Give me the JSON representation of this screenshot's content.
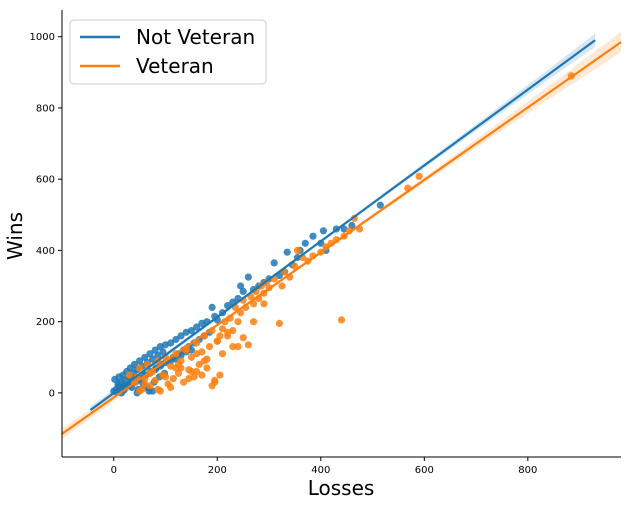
{
  "chart_data": {
    "type": "scatter",
    "title": "",
    "xlabel": "Losses",
    "ylabel": "Wins",
    "xlim": [
      -100,
      980
    ],
    "ylim": [
      -180,
      1075
    ],
    "xticks": [
      0,
      200,
      400,
      600,
      800
    ],
    "yticks": [
      0,
      200,
      400,
      600,
      800,
      1000
    ],
    "grid": false,
    "legend_position": "top-left",
    "series": [
      {
        "name": "Not Veteran",
        "color": "#1f77b4",
        "points": [
          [
            0,
            5
          ],
          [
            2,
            38
          ],
          [
            5,
            10
          ],
          [
            8,
            25
          ],
          [
            10,
            45
          ],
          [
            12,
            15
          ],
          [
            15,
            30
          ],
          [
            18,
            50
          ],
          [
            20,
            8
          ],
          [
            22,
            35
          ],
          [
            25,
            60
          ],
          [
            28,
            20
          ],
          [
            30,
            45
          ],
          [
            32,
            70
          ],
          [
            35,
            15
          ],
          [
            38,
            55
          ],
          [
            40,
            80
          ],
          [
            42,
            30
          ],
          [
            45,
            65
          ],
          [
            48,
            10
          ],
          [
            50,
            90
          ],
          [
            52,
            40
          ],
          [
            55,
            75
          ],
          [
            58,
            20
          ],
          [
            60,
            100
          ],
          [
            62,
            50
          ],
          [
            65,
            85
          ],
          [
            68,
            5
          ],
          [
            70,
            110
          ],
          [
            72,
            60
          ],
          [
            75,
            95
          ],
          [
            78,
            30
          ],
          [
            80,
            120
          ],
          [
            82,
            70
          ],
          [
            85,
            105
          ],
          [
            88,
            45
          ],
          [
            90,
            130
          ],
          [
            92,
            80
          ],
          [
            95,
            115
          ],
          [
            98,
            55
          ],
          [
            100,
            135
          ],
          [
            105,
            90
          ],
          [
            110,
            140
          ],
          [
            115,
            100
          ],
          [
            120,
            150
          ],
          [
            125,
            110
          ],
          [
            130,
            160
          ],
          [
            135,
            120
          ],
          [
            140,
            170
          ],
          [
            145,
            130
          ],
          [
            150,
            175
          ],
          [
            155,
            140
          ],
          [
            160,
            185
          ],
          [
            165,
            150
          ],
          [
            170,
            195
          ],
          [
            175,
            160
          ],
          [
            180,
            200
          ],
          [
            185,
            170
          ],
          [
            190,
            240
          ],
          [
            195,
            215
          ],
          [
            200,
            205
          ],
          [
            210,
            225
          ],
          [
            220,
            245
          ],
          [
            230,
            255
          ],
          [
            240,
            265
          ],
          [
            245,
            300
          ],
          [
            250,
            285
          ],
          [
            260,
            325
          ],
          [
            270,
            290
          ],
          [
            280,
            300
          ],
          [
            290,
            310
          ],
          [
            300,
            320
          ],
          [
            310,
            365
          ],
          [
            320,
            330
          ],
          [
            330,
            340
          ],
          [
            335,
            395
          ],
          [
            345,
            360
          ],
          [
            355,
            380
          ],
          [
            360,
            400
          ],
          [
            370,
            420
          ],
          [
            385,
            440
          ],
          [
            400,
            420
          ],
          [
            405,
            455
          ],
          [
            410,
            400
          ],
          [
            430,
            460
          ],
          [
            445,
            460
          ],
          [
            460,
            470
          ],
          [
            515,
            527
          ],
          [
            10,
            20
          ],
          [
            20,
            18
          ],
          [
            30,
            25
          ],
          [
            40,
            35
          ],
          [
            50,
            40
          ],
          [
            60,
            50
          ],
          [
            70,
            55
          ],
          [
            80,
            65
          ],
          [
            90,
            75
          ],
          [
            100,
            85
          ],
          [
            110,
            90
          ],
          [
            120,
            95
          ],
          [
            130,
            105
          ],
          [
            140,
            115
          ],
          [
            150,
            120
          ],
          [
            45,
            0
          ],
          [
            65,
            15
          ],
          [
            75,
            5
          ],
          [
            55,
            30
          ],
          [
            35,
            40
          ],
          [
            25,
            20
          ],
          [
            15,
            0
          ],
          [
            5,
            2
          ]
        ]
      },
      {
        "name": "Veteran",
        "color": "#ff7f0e",
        "points": [
          [
            30,
            50
          ],
          [
            40,
            30
          ],
          [
            50,
            70
          ],
          [
            55,
            10
          ],
          [
            60,
            40
          ],
          [
            65,
            80
          ],
          [
            70,
            20
          ],
          [
            75,
            60
          ],
          [
            80,
            35
          ],
          [
            85,
            90
          ],
          [
            90,
            5
          ],
          [
            95,
            50
          ],
          [
            100,
            100
          ],
          [
            105,
            25
          ],
          [
            110,
            75
          ],
          [
            115,
            40
          ],
          [
            120,
            110
          ],
          [
            125,
            55
          ],
          [
            130,
            90
          ],
          [
            135,
            30
          ],
          [
            140,
            125
          ],
          [
            145,
            65
          ],
          [
            150,
            100
          ],
          [
            155,
            45
          ],
          [
            160,
            140
          ],
          [
            165,
            80
          ],
          [
            170,
            115
          ],
          [
            175,
            160
          ],
          [
            180,
            95
          ],
          [
            185,
            130
          ],
          [
            190,
            175
          ],
          [
            195,
            35
          ],
          [
            200,
            145
          ],
          [
            205,
            50
          ],
          [
            210,
            180
          ],
          [
            215,
            200
          ],
          [
            220,
            160
          ],
          [
            225,
            210
          ],
          [
            230,
            175
          ],
          [
            235,
            240
          ],
          [
            240,
            200
          ],
          [
            245,
            225
          ],
          [
            250,
            260
          ],
          [
            255,
            240
          ],
          [
            260,
            135
          ],
          [
            265,
            270
          ],
          [
            270,
            250
          ],
          [
            275,
            285
          ],
          [
            280,
            265
          ],
          [
            285,
            300
          ],
          [
            290,
            280
          ],
          [
            295,
            310
          ],
          [
            300,
            295
          ],
          [
            310,
            320
          ],
          [
            320,
            195
          ],
          [
            325,
            300
          ],
          [
            330,
            340
          ],
          [
            340,
            325
          ],
          [
            350,
            355
          ],
          [
            355,
            400
          ],
          [
            365,
            380
          ],
          [
            375,
            370
          ],
          [
            385,
            385
          ],
          [
            400,
            395
          ],
          [
            410,
            410
          ],
          [
            420,
            420
          ],
          [
            430,
            430
          ],
          [
            440,
            205
          ],
          [
            445,
            440
          ],
          [
            455,
            455
          ],
          [
            465,
            490
          ],
          [
            475,
            460
          ],
          [
            568,
            575
          ],
          [
            590,
            608
          ],
          [
            884,
            890
          ],
          [
            110,
            15
          ],
          [
            125,
            80
          ],
          [
            150,
            60
          ],
          [
            170,
            50
          ],
          [
            180,
            70
          ],
          [
            195,
            30
          ],
          [
            200,
            145
          ],
          [
            210,
            110
          ],
          [
            230,
            130
          ],
          [
            250,
            155
          ],
          [
            190,
            20
          ],
          [
            175,
            90
          ],
          [
            160,
            110
          ],
          [
            140,
            120
          ],
          [
            120,
            70
          ],
          [
            100,
            45
          ],
          [
            85,
            10
          ],
          [
            70,
            55
          ],
          [
            60,
            25
          ],
          [
            50,
            5
          ],
          [
            45,
            45
          ],
          [
            160,
            60
          ],
          [
            145,
            40
          ],
          [
            130,
            70
          ],
          [
            205,
            160
          ],
          [
            240,
            130
          ],
          [
            220,
            170
          ],
          [
            270,
            200
          ],
          [
            290,
            250
          ]
        ]
      }
    ],
    "regression": [
      {
        "name": "Not Veteran",
        "color": "#1f77b4",
        "x": [
          -45,
          930
        ],
        "y": [
          -48,
          990
        ]
      },
      {
        "name": "Veteran",
        "color": "#ff7f0e",
        "x": [
          -100,
          980
        ],
        "y": [
          -115,
          985
        ]
      }
    ]
  }
}
